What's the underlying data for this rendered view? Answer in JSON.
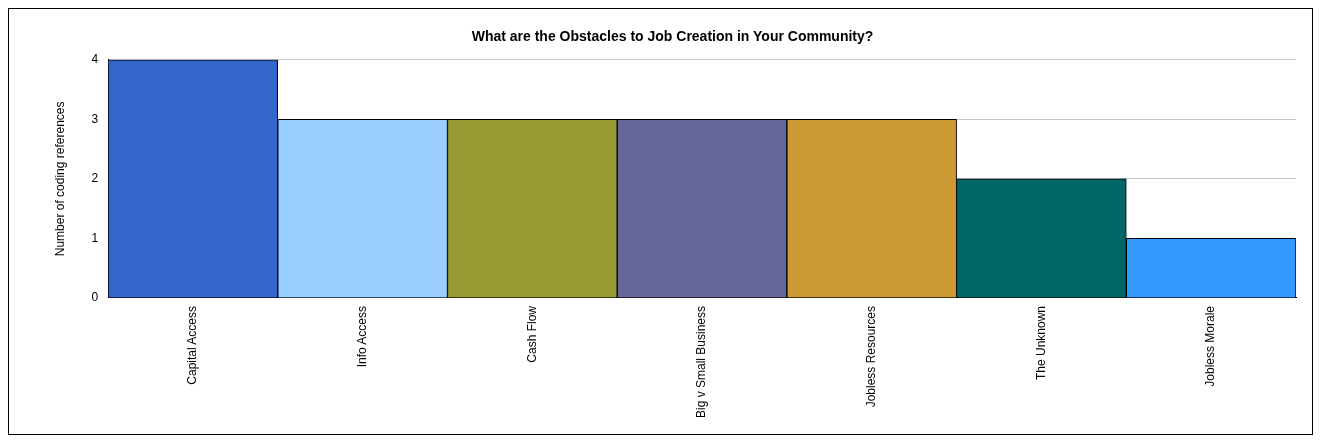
{
  "chart_data": {
    "type": "bar",
    "title": "What are the Obstacles to Job Creation in Your Community?",
    "ylabel": "Number of coding references",
    "categories": [
      "Capital Access",
      "Info Access",
      "Cash Flow",
      "Big v Small Business",
      "Jobless Resources",
      "The Unknown",
      "Jobless Morale"
    ],
    "values": [
      4,
      3,
      3,
      3,
      3,
      2,
      1
    ],
    "colors": [
      "#3366cc",
      "#99ccff",
      "#999933",
      "#666699",
      "#cc9933",
      "#006666",
      "#3399ff"
    ],
    "ylim": [
      0,
      4
    ],
    "yticks": [
      0,
      1,
      2,
      3,
      4
    ],
    "grid": "y",
    "legend": false
  }
}
